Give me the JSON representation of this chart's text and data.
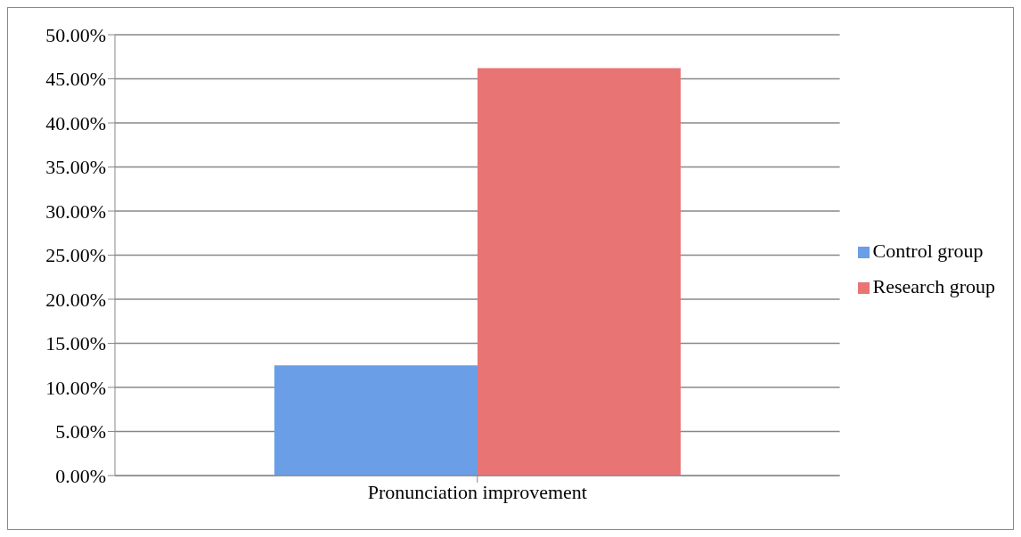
{
  "chart_data": {
    "type": "bar",
    "categories": [
      "Pronunciation improvement"
    ],
    "series": [
      {
        "name": "Control group",
        "color": "#6a9ee6",
        "values": [
          12.5
        ]
      },
      {
        "name": "Research group",
        "color": "#e87474",
        "values": [
          46.2
        ]
      }
    ],
    "ylim": [
      0,
      50
    ],
    "yticks": [
      {
        "value": 0,
        "label": "0.00%"
      },
      {
        "value": 5,
        "label": "5.00%"
      },
      {
        "value": 10,
        "label": "10.00%"
      },
      {
        "value": 15,
        "label": "15.00%"
      },
      {
        "value": 20,
        "label": "20.00%"
      },
      {
        "value": 25,
        "label": "25.00%"
      },
      {
        "value": 30,
        "label": "30.00%"
      },
      {
        "value": 35,
        "label": "35.00%"
      },
      {
        "value": 40,
        "label": "40.00%"
      },
      {
        "value": 45,
        "label": "45.00%"
      },
      {
        "value": 50,
        "label": "50.00%"
      }
    ],
    "grid": "y",
    "legend": "right"
  }
}
